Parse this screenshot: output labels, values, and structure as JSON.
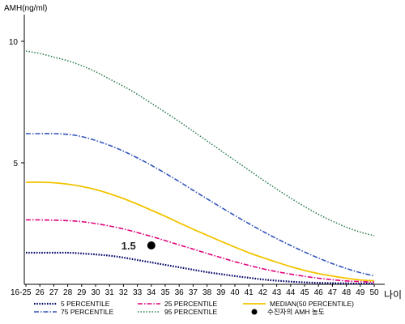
{
  "chart_data": {
    "type": "line",
    "ylabel": "AMH(ng/ml)",
    "xlabel": "나이",
    "ylim": [
      0,
      11
    ],
    "yticks": [
      {
        "value": 5,
        "label": "5"
      },
      {
        "value": 10,
        "label": "10"
      }
    ],
    "categories": [
      "16-25",
      "26",
      "27",
      "28",
      "29",
      "30",
      "31",
      "32",
      "33",
      "34",
      "35",
      "36",
      "37",
      "38",
      "39",
      "40",
      "41",
      "42",
      "43",
      "44",
      "45",
      "46",
      "47",
      "48",
      "49",
      "50"
    ],
    "series": [
      {
        "name": "5 PERCENTILE",
        "style": "dotted-fine",
        "color": "#000066",
        "values": [
          1.3,
          1.3,
          1.3,
          1.3,
          1.27,
          1.23,
          1.18,
          1.1,
          1.0,
          0.9,
          0.8,
          0.7,
          0.6,
          0.5,
          0.42,
          0.34,
          0.27,
          0.2,
          0.15,
          0.11,
          0.08,
          0.06,
          0.05,
          0.04,
          0.03,
          0.03
        ]
      },
      {
        "name": "25 PERCENTILE",
        "style": "dashdot",
        "color": "#e0007a",
        "values": [
          2.65,
          2.65,
          2.64,
          2.62,
          2.58,
          2.5,
          2.4,
          2.28,
          2.13,
          1.97,
          1.8,
          1.62,
          1.45,
          1.27,
          1.1,
          0.93,
          0.78,
          0.64,
          0.52,
          0.42,
          0.33,
          0.25,
          0.19,
          0.14,
          0.11,
          0.09
        ]
      },
      {
        "name": "MEDIAN(50 PERCENTILE)",
        "style": "solid",
        "color": "#f2c400",
        "values": [
          4.2,
          4.2,
          4.18,
          4.12,
          4.03,
          3.9,
          3.73,
          3.53,
          3.3,
          3.05,
          2.8,
          2.53,
          2.27,
          2.02,
          1.77,
          1.53,
          1.3,
          1.1,
          0.91,
          0.73,
          0.57,
          0.44,
          0.34,
          0.25,
          0.18,
          0.15
        ]
      },
      {
        "name": "75 PERCENTILE",
        "style": "dashdot",
        "color": "#3355bb",
        "values": [
          6.2,
          6.2,
          6.2,
          6.17,
          6.08,
          5.92,
          5.72,
          5.48,
          5.2,
          4.9,
          4.57,
          4.23,
          3.87,
          3.52,
          3.17,
          2.83,
          2.5,
          2.18,
          1.88,
          1.6,
          1.33,
          1.08,
          0.85,
          0.65,
          0.48,
          0.35
        ]
      },
      {
        "name": "95 PERCENTILE",
        "style": "dotted",
        "color": "#2e7d4f",
        "values": [
          9.6,
          9.5,
          9.35,
          9.2,
          9.0,
          8.75,
          8.45,
          8.15,
          7.82,
          7.45,
          7.08,
          6.7,
          6.3,
          5.9,
          5.5,
          5.1,
          4.7,
          4.3,
          3.92,
          3.55,
          3.2,
          2.88,
          2.6,
          2.35,
          2.15,
          2.0
        ]
      }
    ],
    "annotations": [
      {
        "label": "1.5",
        "x": "34",
        "y": 1.6
      }
    ],
    "legend": {
      "placement": "bottom",
      "marker_entry": "수진자의 AMH 농도"
    },
    "grid": false
  }
}
